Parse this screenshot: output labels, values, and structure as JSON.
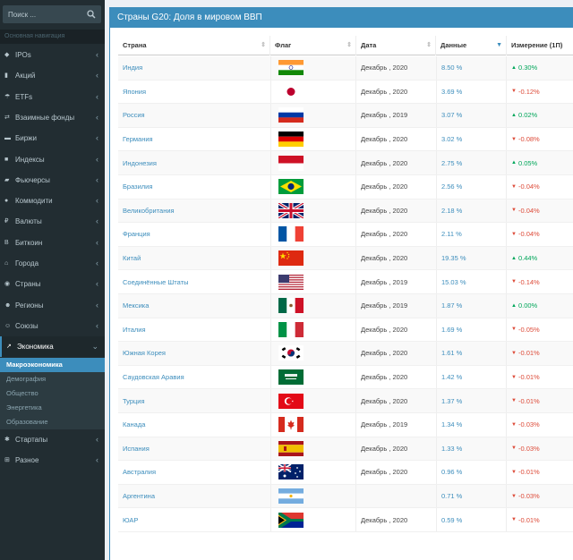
{
  "sidebar": {
    "search_placeholder": "Поиск ...",
    "header": "Основная навигация",
    "items": [
      {
        "label": "IPOs",
        "icon": "tag-icon"
      },
      {
        "label": "Акций",
        "icon": "bar-chart-icon"
      },
      {
        "label": "ETFs",
        "icon": "umbrella-icon"
      },
      {
        "label": "Взаимные фонды",
        "icon": "exchange-icon"
      },
      {
        "label": "Биржи",
        "icon": "credit-card-icon"
      },
      {
        "label": "Индексы",
        "icon": "square-icon"
      },
      {
        "label": "Фьючерсы",
        "icon": "truck-icon"
      },
      {
        "label": "Коммодити",
        "icon": "tint-icon"
      },
      {
        "label": "Валюты",
        "icon": "ruble-icon"
      },
      {
        "label": "Биткоин",
        "icon": "bitcoin-icon"
      },
      {
        "label": "Города",
        "icon": "home-icon"
      },
      {
        "label": "Страны",
        "icon": "globe-icon"
      },
      {
        "label": "Регионы",
        "icon": "users-icon"
      },
      {
        "label": "Союзы",
        "icon": "group-icon"
      },
      {
        "label": "Экономика",
        "icon": "line-chart-icon"
      }
    ],
    "sub_items": [
      "Макроэкономика",
      "Демография",
      "Общество",
      "Энергетика",
      "Образование"
    ],
    "bottom_items": [
      {
        "label": "Стартапы",
        "icon": "cogs-icon"
      },
      {
        "label": "Разное",
        "icon": "plus-square-icon"
      }
    ]
  },
  "panel": {
    "title": "Страны G20: Доля в мировом ВВП",
    "columns": [
      "Страна",
      "Флаг",
      "Дата",
      "Данные",
      "Измерение (1П)"
    ],
    "rows": [
      {
        "country": "Индия",
        "flag": "in",
        "date": "Декабрь , 2020",
        "data": "8.50 %",
        "change": "0.30%",
        "dir": "up"
      },
      {
        "country": "Япония",
        "flag": "jp",
        "date": "Декабрь , 2020",
        "data": "3.69 %",
        "change": "-0.12%",
        "dir": "down"
      },
      {
        "country": "Россия",
        "flag": "ru",
        "date": "Декабрь , 2019",
        "data": "3.07 %",
        "change": "0.02%",
        "dir": "up"
      },
      {
        "country": "Германия",
        "flag": "de",
        "date": "Декабрь , 2020",
        "data": "3.02 %",
        "change": "-0.08%",
        "dir": "down"
      },
      {
        "country": "Индонезия",
        "flag": "id",
        "date": "Декабрь , 2020",
        "data": "2.75 %",
        "change": "0.05%",
        "dir": "up"
      },
      {
        "country": "Бразилия",
        "flag": "br",
        "date": "Декабрь , 2020",
        "data": "2.56 %",
        "change": "-0.04%",
        "dir": "down"
      },
      {
        "country": "Великобритания",
        "flag": "gb",
        "date": "Декабрь , 2020",
        "data": "2.18 %",
        "change": "-0.04%",
        "dir": "down"
      },
      {
        "country": "Франция",
        "flag": "fr",
        "date": "Декабрь , 2020",
        "data": "2.11 %",
        "change": "-0.04%",
        "dir": "down"
      },
      {
        "country": "Китай",
        "flag": "cn",
        "date": "Декабрь , 2020",
        "data": "19.35 %",
        "change": "0.44%",
        "dir": "up"
      },
      {
        "country": "Соединённые Штаты",
        "flag": "us",
        "date": "Декабрь , 2019",
        "data": "15.03 %",
        "change": "-0.14%",
        "dir": "down"
      },
      {
        "country": "Мексика",
        "flag": "mx",
        "date": "Декабрь , 2019",
        "data": "1.87 %",
        "change": "0.00%",
        "dir": "up"
      },
      {
        "country": "Италия",
        "flag": "it",
        "date": "Декабрь , 2020",
        "data": "1.69 %",
        "change": "-0.05%",
        "dir": "down"
      },
      {
        "country": "Южная Корея",
        "flag": "kr",
        "date": "Декабрь , 2020",
        "data": "1.61 %",
        "change": "-0.01%",
        "dir": "down"
      },
      {
        "country": "Саудовская Аравия",
        "flag": "sa",
        "date": "Декабрь , 2020",
        "data": "1.42 %",
        "change": "-0.01%",
        "dir": "down"
      },
      {
        "country": "Турция",
        "flag": "tr",
        "date": "Декабрь , 2020",
        "data": "1.37 %",
        "change": "-0.01%",
        "dir": "down"
      },
      {
        "country": "Канада",
        "flag": "ca",
        "date": "Декабрь , 2019",
        "data": "1.34 %",
        "change": "-0.03%",
        "dir": "down"
      },
      {
        "country": "Испания",
        "flag": "es",
        "date": "Декабрь , 2020",
        "data": "1.33 %",
        "change": "-0.03%",
        "dir": "down"
      },
      {
        "country": "Австралия",
        "flag": "au",
        "date": "Декабрь , 2020",
        "data": "0.96 %",
        "change": "-0.01%",
        "dir": "down"
      },
      {
        "country": "Аргентина",
        "flag": "ar",
        "date": "",
        "data": "0.71 %",
        "change": "-0.03%",
        "dir": "down"
      },
      {
        "country": "ЮАР",
        "flag": "za",
        "date": "Декабрь , 2020",
        "data": "0.59 %",
        "change": "-0.01%",
        "dir": "down"
      }
    ]
  },
  "colors": {
    "sidebar_bg": "#222d32",
    "accent": "#3c8dbc",
    "up": "#00a65a",
    "down": "#dd4b39"
  }
}
